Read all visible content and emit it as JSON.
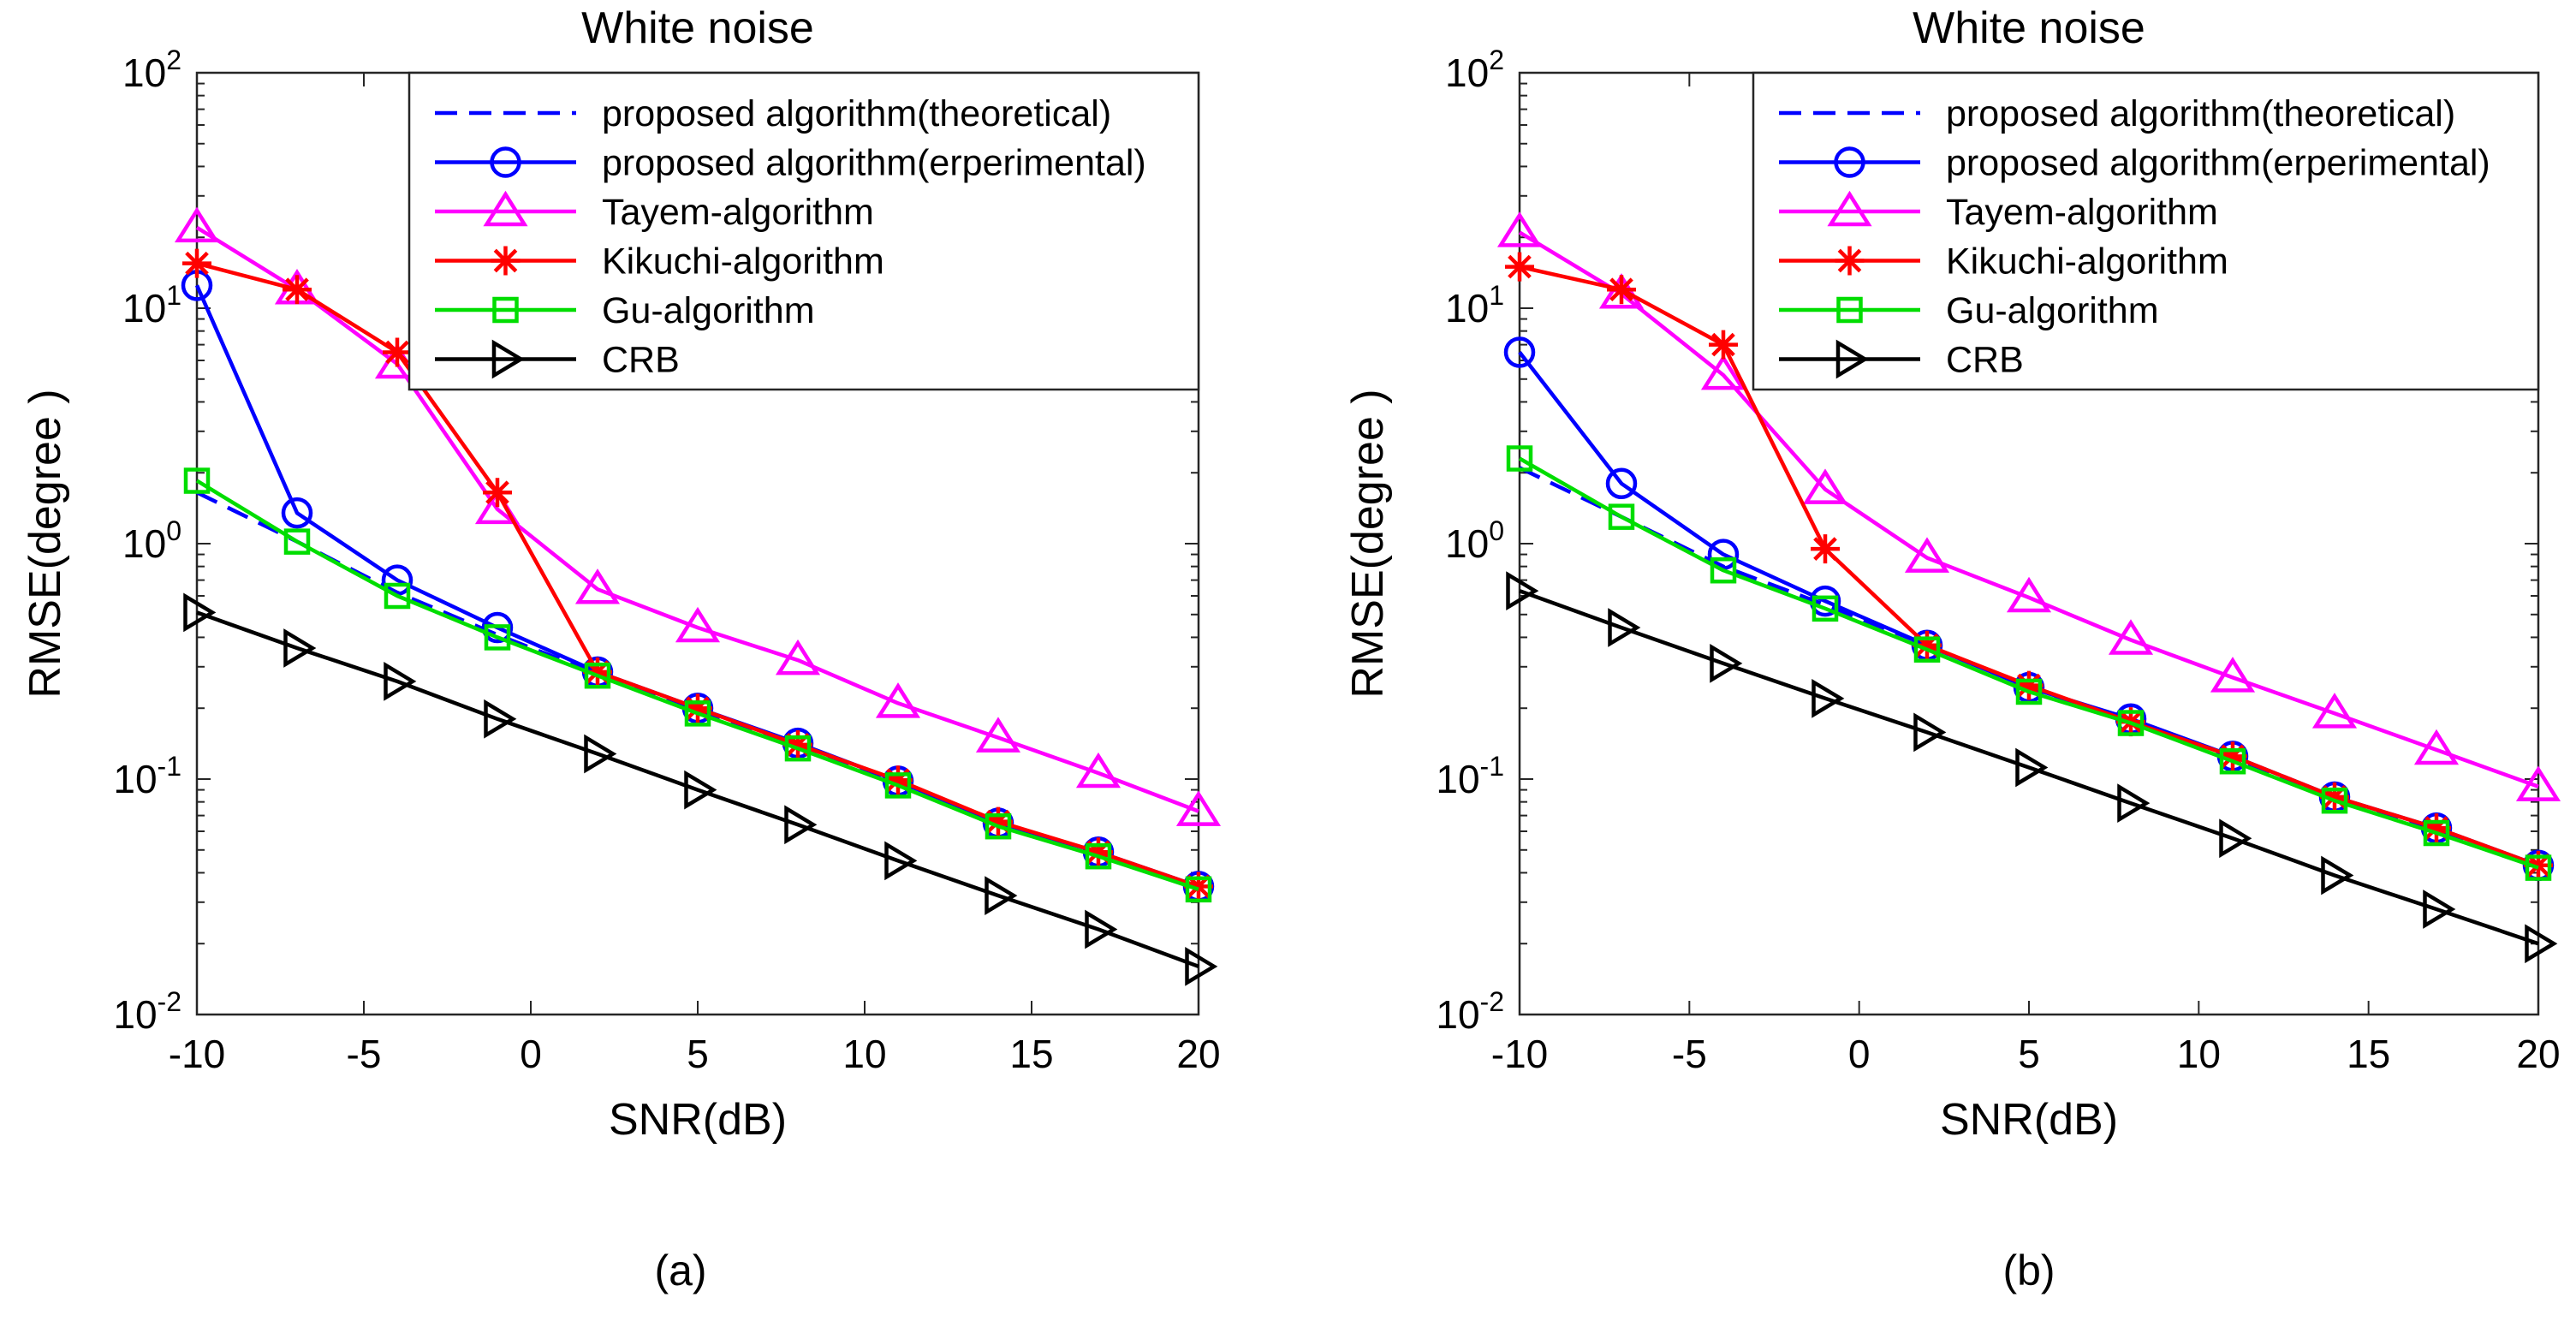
{
  "chart_data": [
    {
      "type": "line",
      "title": "White noise",
      "xlabel": "SNR(dB)",
      "ylabel": "RMSE(degree )",
      "panel_label": "(a)",
      "yscale": "log",
      "xlim": [
        -10,
        20
      ],
      "ylim": [
        0.01,
        100
      ],
      "x_ticks": [
        -10,
        -5,
        0,
        5,
        10,
        15,
        20
      ],
      "x_tick_labels": [
        "-10",
        "-5",
        "0",
        "5",
        "10",
        "15",
        "20"
      ],
      "y_ticks": [
        0.01,
        0.1,
        1,
        10,
        100
      ],
      "y_tick_labels": [
        {
          "base": "10",
          "exp": "-2"
        },
        {
          "base": "10",
          "exp": "-1"
        },
        {
          "base": "10",
          "exp": "0"
        },
        {
          "base": "10",
          "exp": "1"
        },
        {
          "base": "10",
          "exp": "2"
        }
      ],
      "grid": false,
      "legend_position": "top-right",
      "x": [
        -10,
        -7,
        -4,
        -1,
        2,
        5,
        8,
        11,
        14,
        17,
        20
      ],
      "series": [
        {
          "name": "proposed algorithm(theoretical)",
          "color": "#0000ff",
          "marker": "none",
          "dash": true,
          "values": [
            1.65,
            1.02,
            0.62,
            0.41,
            0.28,
            0.195,
            0.138,
            0.097,
            0.066,
            0.048,
            0.035
          ]
        },
        {
          "name": "proposed algorithm(erperimental)",
          "color": "#0000ff",
          "marker": "circle",
          "dash": false,
          "values": [
            12.5,
            1.35,
            0.7,
            0.44,
            0.285,
            0.2,
            0.142,
            0.098,
            0.065,
            0.049,
            0.035
          ]
        },
        {
          "name": "Tayem-algorithm",
          "color": "#ff00ff",
          "marker": "triangle-up",
          "dash": false,
          "values": [
            22,
            12,
            5.8,
            1.4,
            0.64,
            0.44,
            0.32,
            0.21,
            0.15,
            0.106,
            0.073
          ]
        },
        {
          "name": "Kikuchi-algorithm",
          "color": "#ff0000",
          "marker": "asterisk",
          "dash": false,
          "values": [
            15.5,
            12,
            6.5,
            1.65,
            0.285,
            0.2,
            0.14,
            0.099,
            0.066,
            0.049,
            0.035
          ]
        },
        {
          "name": "Gu-algorithm",
          "color": "#00dd00",
          "marker": "square",
          "dash": false,
          "values": [
            1.85,
            1.02,
            0.6,
            0.4,
            0.275,
            0.19,
            0.135,
            0.094,
            0.063,
            0.047,
            0.034
          ]
        },
        {
          "name": "CRB",
          "color": "#000000",
          "marker": "triangle-right",
          "dash": false,
          "values": [
            0.51,
            0.36,
            0.26,
            0.18,
            0.128,
            0.09,
            0.064,
            0.045,
            0.032,
            0.023,
            0.016
          ]
        }
      ]
    },
    {
      "type": "line",
      "title": "White noise",
      "xlabel": "SNR(dB)",
      "ylabel": "RMSE(degree )",
      "panel_label": "(b)",
      "yscale": "log",
      "xlim": [
        -10,
        20
      ],
      "ylim": [
        0.01,
        100
      ],
      "x_ticks": [
        -10,
        -5,
        0,
        5,
        10,
        15,
        20
      ],
      "x_tick_labels": [
        "-10",
        "-5",
        "0",
        "5",
        "10",
        "15",
        "20"
      ],
      "y_ticks": [
        0.01,
        0.1,
        1,
        10,
        100
      ],
      "y_tick_labels": [
        {
          "base": "10",
          "exp": "-2"
        },
        {
          "base": "10",
          "exp": "-1"
        },
        {
          "base": "10",
          "exp": "0"
        },
        {
          "base": "10",
          "exp": "1"
        },
        {
          "base": "10",
          "exp": "2"
        }
      ],
      "grid": false,
      "legend_position": "top-right",
      "x": [
        -10,
        -7,
        -4,
        -1,
        2,
        5,
        8,
        11,
        14,
        17,
        20
      ],
      "series": [
        {
          "name": "proposed algorithm(theoretical)",
          "color": "#0000ff",
          "marker": "none",
          "dash": true,
          "values": [
            2.1,
            1.3,
            0.8,
            0.55,
            0.37,
            0.245,
            0.177,
            0.123,
            0.083,
            0.061,
            0.043
          ]
        },
        {
          "name": "proposed algorithm(erperimental)",
          "color": "#0000ff",
          "marker": "circle",
          "dash": false,
          "values": [
            6.5,
            1.8,
            0.9,
            0.57,
            0.37,
            0.245,
            0.18,
            0.125,
            0.084,
            0.062,
            0.043
          ]
        },
        {
          "name": "Tayem-algorithm",
          "color": "#ff00ff",
          "marker": "triangle-up",
          "dash": false,
          "values": [
            21,
            11.5,
            5.2,
            1.7,
            0.87,
            0.59,
            0.39,
            0.27,
            0.19,
            0.133,
            0.093
          ]
        },
        {
          "name": "Kikuchi-algorithm",
          "color": "#ff0000",
          "marker": "asterisk",
          "dash": false,
          "values": [
            15,
            12,
            7,
            0.95,
            0.37,
            0.25,
            0.175,
            0.125,
            0.084,
            0.062,
            0.043
          ]
        },
        {
          "name": "Gu-algorithm",
          "color": "#00dd00",
          "marker": "square",
          "dash": false,
          "values": [
            2.3,
            1.3,
            0.77,
            0.53,
            0.355,
            0.235,
            0.173,
            0.119,
            0.081,
            0.059,
            0.042
          ]
        },
        {
          "name": "CRB",
          "color": "#000000",
          "marker": "triangle-right",
          "dash": false,
          "values": [
            0.63,
            0.44,
            0.31,
            0.22,
            0.158,
            0.112,
            0.079,
            0.056,
            0.039,
            0.028,
            0.02
          ]
        }
      ]
    }
  ]
}
